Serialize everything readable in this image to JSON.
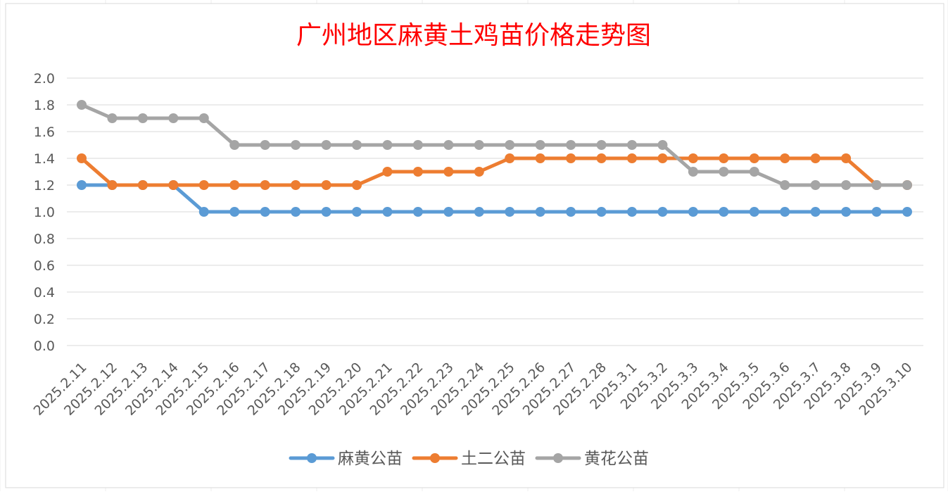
{
  "chart_data": {
    "type": "line",
    "title": "广州地区麻黄土鸡苗价格走势图",
    "title_color": "#ff0000",
    "xlabel": "",
    "ylabel": "",
    "ylim": [
      0,
      2.0
    ],
    "yticks": [
      "0.0",
      "0.2",
      "0.4",
      "0.6",
      "0.8",
      "1.0",
      "1.2",
      "1.4",
      "1.6",
      "1.8",
      "2.0"
    ],
    "grid": true,
    "legend_position": "bottom",
    "categories": [
      "2025.2.11",
      "2025.2.12",
      "2025.2.13",
      "2025.2.14",
      "2025.2.15",
      "2025.2.16",
      "2025.2.17",
      "2025.2.18",
      "2025.2.19",
      "2025.2.20",
      "2025.2.21",
      "2025.2.22",
      "2025.2.23",
      "2025.2.24",
      "2025.2.25",
      "2025.2.26",
      "2025.2.27",
      "2025.2.28",
      "2025.3.1",
      "2025.3.2",
      "2025.3.3",
      "2025.3.4",
      "2025.3.5",
      "2025.3.6",
      "2025.3.7",
      "2025.3.8",
      "2025.3.9",
      "2025.3.10"
    ],
    "series": [
      {
        "name": "麻黄公苗",
        "color": "#5b9bd5",
        "values": [
          1.2,
          1.2,
          1.2,
          1.2,
          1.0,
          1.0,
          1.0,
          1.0,
          1.0,
          1.0,
          1.0,
          1.0,
          1.0,
          1.0,
          1.0,
          1.0,
          1.0,
          1.0,
          1.0,
          1.0,
          1.0,
          1.0,
          1.0,
          1.0,
          1.0,
          1.0,
          1.0,
          1.0
        ]
      },
      {
        "name": "土二公苗",
        "color": "#ed7d31",
        "values": [
          1.4,
          1.2,
          1.2,
          1.2,
          1.2,
          1.2,
          1.2,
          1.2,
          1.2,
          1.2,
          1.3,
          1.3,
          1.3,
          1.3,
          1.4,
          1.4,
          1.4,
          1.4,
          1.4,
          1.4,
          1.4,
          1.4,
          1.4,
          1.4,
          1.4,
          1.4,
          1.2,
          1.2
        ]
      },
      {
        "name": "黄花公苗",
        "color": "#a5a5a5",
        "values": [
          1.8,
          1.7,
          1.7,
          1.7,
          1.7,
          1.5,
          1.5,
          1.5,
          1.5,
          1.5,
          1.5,
          1.5,
          1.5,
          1.5,
          1.5,
          1.5,
          1.5,
          1.5,
          1.5,
          1.5,
          1.3,
          1.3,
          1.3,
          1.2,
          1.2,
          1.2,
          1.2,
          1.2
        ]
      }
    ]
  }
}
